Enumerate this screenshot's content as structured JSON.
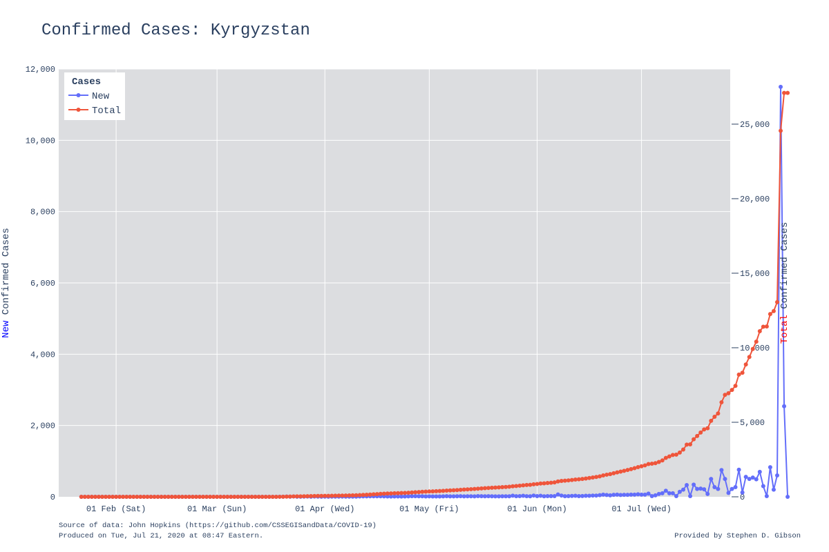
{
  "chart_data": {
    "type": "line",
    "title": "Confirmed Cases: Kyrgyzstan",
    "x": {
      "start": "2020-01-22",
      "end": "2020-07-20",
      "tick_labels": [
        "01 Feb (Sat)",
        "01 Mar (Sun)",
        "01 Apr (Wed)",
        "01 May (Fri)",
        "01 Jun (Mon)",
        "01 Jul (Wed)"
      ],
      "tick_dates": [
        "2020-02-01",
        "2020-03-01",
        "2020-04-01",
        "2020-05-01",
        "2020-06-01",
        "2020-07-01"
      ]
    },
    "y_left": {
      "label_colored": "New",
      "label_rest": " Confirmed Cases",
      "label_color": "#0000ff",
      "range": [
        0,
        12000
      ],
      "ticks": [
        0,
        2000,
        4000,
        6000,
        8000,
        10000,
        12000
      ],
      "tick_labels": [
        "0",
        "2,000",
        "4,000",
        "6,000",
        "8,000",
        "10,000",
        "12,000"
      ]
    },
    "y_right": {
      "label_colored": "Total",
      "label_rest": " Confirmed Cases",
      "label_color": "#ff0000",
      "range": [
        0,
        28700
      ],
      "ticks": [
        0,
        5000,
        10000,
        15000,
        20000,
        25000
      ],
      "tick_labels": [
        "0",
        "5,000",
        "10,000",
        "15,000",
        "20,000",
        "25,000"
      ]
    },
    "legend": {
      "title": "Cases",
      "placement": "top-left",
      "entries": [
        "New",
        "Total"
      ]
    },
    "series": [
      {
        "name": "New",
        "axis": "left",
        "color": "#636efa",
        "start": "2020-01-22",
        "values": [
          0,
          0,
          0,
          0,
          0,
          0,
          0,
          0,
          0,
          0,
          0,
          0,
          0,
          0,
          0,
          0,
          0,
          0,
          0,
          0,
          0,
          0,
          0,
          0,
          0,
          0,
          0,
          0,
          0,
          0,
          0,
          0,
          0,
          0,
          0,
          0,
          0,
          0,
          0,
          0,
          0,
          0,
          0,
          0,
          0,
          0,
          0,
          0,
          0,
          0,
          0,
          0,
          0,
          0,
          0,
          0,
          0,
          3,
          3,
          8,
          2,
          10,
          2,
          2,
          4,
          8,
          2,
          8,
          4,
          3,
          4,
          2,
          5,
          4,
          4,
          6,
          4,
          5,
          5,
          5,
          10,
          12,
          12,
          15,
          15,
          15,
          14,
          12,
          10,
          8,
          10,
          9,
          8,
          9,
          11,
          18,
          16,
          14,
          14,
          10,
          11,
          10,
          10,
          10,
          12,
          18,
          12,
          11,
          14,
          18,
          13,
          14,
          14,
          13,
          20,
          18,
          14,
          16,
          15,
          11,
          12,
          15,
          15,
          15,
          32,
          16,
          20,
          28,
          18,
          14,
          35,
          20,
          30,
          15,
          20,
          20,
          20,
          65,
          35,
          18,
          20,
          25,
          30,
          20,
          22,
          30,
          30,
          35,
          35,
          45,
          60,
          50,
          40,
          55,
          60,
          50,
          55,
          55,
          60,
          60,
          70,
          60,
          60,
          90,
          20,
          40,
          80,
          100,
          170,
          100,
          100,
          20,
          140,
          200,
          330,
          20,
          340,
          220,
          230,
          210,
          80,
          500,
          270,
          220,
          750,
          500,
          110,
          220,
          270,
          760,
          120,
          560,
          500,
          540,
          490,
          700,
          300,
          20,
          830,
          200,
          600,
          11500,
          2540,
          0
        ]
      },
      {
        "name": "Total",
        "axis": "right",
        "color": "#ef553b",
        "start": "2020-01-22",
        "values": [
          0,
          0,
          0,
          0,
          0,
          0,
          0,
          0,
          0,
          0,
          0,
          0,
          0,
          0,
          0,
          0,
          0,
          0,
          0,
          0,
          0,
          0,
          0,
          0,
          0,
          0,
          0,
          0,
          0,
          0,
          0,
          0,
          0,
          0,
          0,
          0,
          0,
          0,
          0,
          0,
          0,
          0,
          0,
          0,
          0,
          0,
          0,
          0,
          0,
          0,
          0,
          0,
          0,
          0,
          0,
          0,
          0,
          3,
          6,
          14,
          16,
          26,
          28,
          30,
          34,
          42,
          44,
          52,
          56,
          59,
          63,
          65,
          70,
          74,
          78,
          84,
          88,
          93,
          98,
          103,
          113,
          125,
          137,
          152,
          167,
          182,
          196,
          208,
          218,
          226,
          236,
          245,
          253,
          262,
          273,
          291,
          307,
          321,
          335,
          345,
          356,
          366,
          376,
          386,
          398,
          416,
          428,
          439,
          453,
          471,
          484,
          498,
          512,
          525,
          545,
          563,
          577,
          593,
          608,
          619,
          631,
          646,
          661,
          676,
          708,
          724,
          744,
          772,
          790,
          804,
          839,
          859,
          889,
          904,
          924,
          944,
          964,
          1029,
          1064,
          1082,
          1102,
          1127,
          1157,
          1177,
          1199,
          1229,
          1259,
          1294,
          1329,
          1374,
          1434,
          1484,
          1524,
          1579,
          1639,
          1689,
          1744,
          1799,
          1859,
          1919,
          1989,
          2049,
          2109,
          2199,
          2219,
          2259,
          2339,
          2439,
          2609,
          2709,
          2809,
          2829,
          2969,
          3169,
          3499,
          3519,
          3859,
          4079,
          4309,
          4519,
          4599,
          5099,
          5369,
          5589,
          6339,
          6839,
          6949,
          7169,
          7439,
          8199,
          8319,
          8879,
          9379,
          9919,
          10409,
          11109,
          11409,
          11429,
          12259,
          12459,
          13059,
          24559,
          27099,
          27099
        ]
      }
    ]
  },
  "footer": {
    "source_line": "Source of data: John Hopkins (https://github.com/CSSEGISandData/COVID-19)",
    "produced_line": "Produced on Tue, Jul 21, 2020 at 08:47 Eastern.",
    "credit_line": "Provided by Stephen D. Gibson"
  }
}
